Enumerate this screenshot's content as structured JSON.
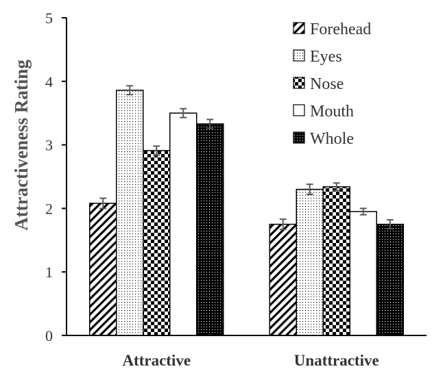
{
  "chart_data": {
    "type": "bar",
    "title": "",
    "xlabel": "",
    "ylabel": "Attractiveness Rating",
    "ylim": [
      0,
      5
    ],
    "yticks": [
      0,
      1,
      2,
      3,
      4,
      5
    ],
    "grid": false,
    "legend": "top-right",
    "categories": [
      "Attractive",
      "Unattractive"
    ],
    "series": [
      {
        "name": "Forehead",
        "pattern": "diagonal-stripes",
        "values": [
          2.08,
          1.75
        ],
        "errors": [
          0.08,
          0.08
        ]
      },
      {
        "name": "Eyes",
        "pattern": "fine-dots",
        "values": [
          3.86,
          2.3
        ],
        "errors": [
          0.07,
          0.08
        ]
      },
      {
        "name": "Nose",
        "pattern": "checkerboard",
        "values": [
          2.91,
          2.34
        ],
        "errors": [
          0.07,
          0.06
        ]
      },
      {
        "name": "Mouth",
        "pattern": "solid-white",
        "values": [
          3.5,
          1.95
        ],
        "errors": [
          0.07,
          0.05
        ]
      },
      {
        "name": "Whole",
        "pattern": "dark-dots",
        "values": [
          3.33,
          1.75
        ],
        "errors": [
          0.07,
          0.07
        ]
      }
    ],
    "colors": {
      "ink": "#000000",
      "error_bar": "#595959",
      "text": "#333333",
      "axis_title": "#555555"
    }
  }
}
